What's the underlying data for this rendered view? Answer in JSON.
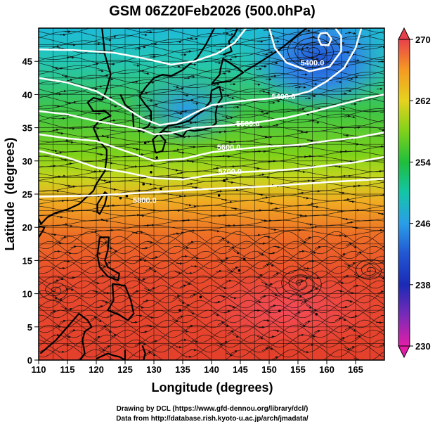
{
  "title": "GSM 06Z20Feb2026 (500.0hPa)",
  "x_axis": {
    "label": "Longitude (degrees)",
    "range": [
      110,
      170
    ],
    "ticks": [
      110,
      115,
      120,
      125,
      130,
      135,
      140,
      145,
      150,
      155,
      160,
      165
    ]
  },
  "y_axis": {
    "label": "Latitude  (degrees)",
    "range": [
      0,
      50
    ],
    "ticks": [
      0,
      5,
      10,
      15,
      20,
      25,
      30,
      35,
      40,
      45
    ]
  },
  "colorbar": {
    "range": [
      230,
      270
    ],
    "tick_labels": [
      "270",
      "262",
      "254",
      "246",
      "238",
      "230"
    ],
    "colors": {
      "270": "#e8404a",
      "266": "#f59a23",
      "262": "#e5d21e",
      "258": "#7fd11b",
      "254": "#1fbe3c",
      "250": "#14c4a8",
      "246": "#2a9ee8",
      "242": "#2256d2",
      "238": "#1a2bb6",
      "234": "#7a2ab8",
      "230": "#e21ea8"
    }
  },
  "contours": {
    "levels": [
      "5400.0",
      "5500.0",
      "5600.0",
      "5700.0",
      "5800.0"
    ],
    "labels": [
      {
        "text": "5400.0",
        "lon": 152.5,
        "lat": 39.3
      },
      {
        "text": "5400.0",
        "lon": 157.5,
        "lat": 44.4
      },
      {
        "text": "5500.0",
        "lon": 146.3,
        "lat": 35.2
      },
      {
        "text": "5600.0",
        "lon": 143.0,
        "lat": 31.7
      },
      {
        "text": "5700.0",
        "lon": 143.2,
        "lat": 28.0
      },
      {
        "text": "5800.0",
        "lon": 128.4,
        "lat": 23.7
      }
    ]
  },
  "footer": {
    "line1": "Drawing by DCL (https://www.gfd-dennou.org/library/dcl/)",
    "line2": "Data from http://database.rish.kyoto-u.ac.jp/arch/jmadata/"
  }
}
